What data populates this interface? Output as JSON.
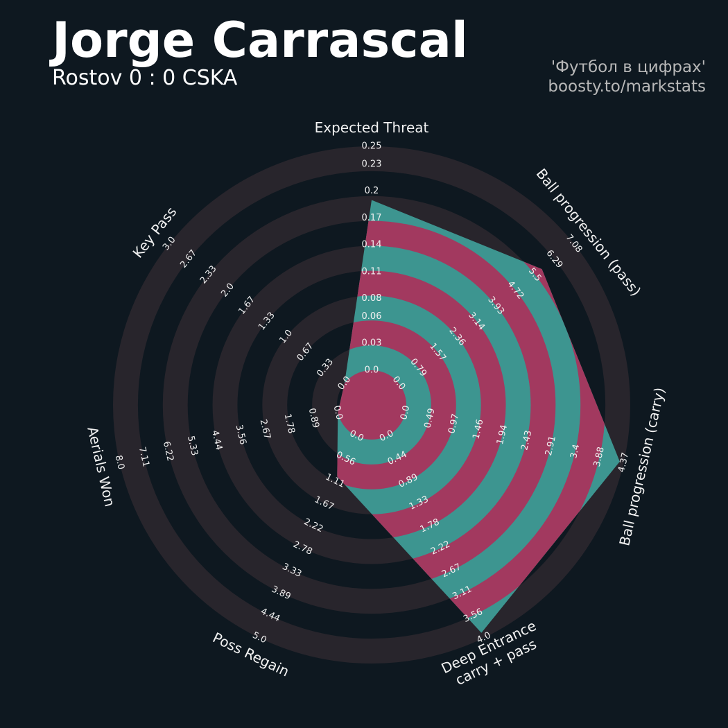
{
  "chart_data": {
    "type": "radar",
    "title": "Jorge Carrascal",
    "subtitle": "Rostov 0 : 0 CSKA",
    "credits": [
      "'Футбол в цифрах'",
      "boosty.to/markstats"
    ],
    "categories": [
      "Expected Threat",
      "Ball progression (pass)",
      "Ball progression (carry)",
      "Deep Entrance\ncarry + pass",
      "Poss Regain",
      "Aerials Won",
      "Key Pass"
    ],
    "values": [
      0.19,
      5.79,
      4.29,
      3.9,
      1,
      0,
      0
    ],
    "axes": [
      {
        "lim": [
          0,
          0.25
        ],
        "ticks": [
          {
            "value": 0,
            "label": "0.0"
          },
          0.03,
          0.06,
          0.08,
          0.11,
          0.14,
          0.17,
          0.2,
          0.23,
          0.25
        ]
      },
      {
        "lim": [
          0,
          7.08
        ],
        "ticks": [
          {
            "value": 0,
            "label": "0.0"
          },
          0.79,
          1.57,
          2.36,
          3.14,
          3.93,
          4.72,
          5.5,
          6.29,
          7.08
        ]
      },
      {
        "lim": [
          0,
          4.37
        ],
        "ticks": [
          {
            "value": 0,
            "label": "0.0"
          },
          0.49,
          0.97,
          1.46,
          1.94,
          2.43,
          2.91,
          3.4,
          3.88,
          4.37
        ]
      },
      {
        "lim": [
          0,
          4
        ],
        "ticks": [
          {
            "value": 0,
            "label": "0.0"
          },
          0.44,
          0.89,
          1.33,
          1.78,
          2.22,
          2.67,
          3.11,
          3.56,
          {
            "value": 4,
            "label": "4.0"
          }
        ]
      },
      {
        "lim": [
          0,
          5
        ],
        "ticks": [
          {
            "value": 0,
            "label": "0.0"
          },
          0.56,
          1.11,
          1.67,
          2.22,
          2.78,
          3.33,
          3.89,
          4.44,
          {
            "value": 5,
            "label": "5.0"
          }
        ]
      },
      {
        "lim": [
          0,
          8
        ],
        "ticks": [
          {
            "value": 0,
            "label": "0.0"
          },
          0.89,
          1.78,
          2.67,
          3.56,
          4.44,
          5.33,
          6.22,
          7.11,
          {
            "value": 8,
            "label": "8.0"
          }
        ]
      },
      {
        "lim": [
          0,
          3
        ],
        "ticks": [
          {
            "value": 0,
            "label": "0.0"
          },
          0.33,
          0.67,
          {
            "value": 1,
            "label": "1.0"
          },
          1.33,
          1.67,
          {
            "value": 2,
            "label": "2.0"
          },
          2.33,
          2.67,
          {
            "value": 3,
            "label": "3.0"
          }
        ]
      }
    ],
    "color": "#3d9590",
    "alt_color": "#a2395f",
    "ring_color": "#28252c"
  }
}
